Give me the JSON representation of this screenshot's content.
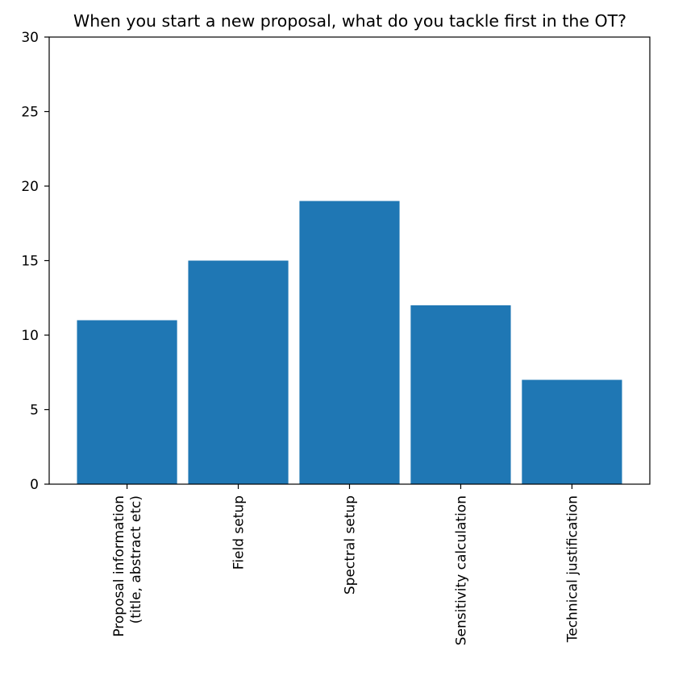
{
  "chart_data": {
    "type": "bar",
    "title": "When you start a new proposal, what do you tackle first in the OT?",
    "xlabel": "",
    "ylabel": "",
    "categories": [
      [
        "Proposal information",
        "(title, abstract etc)"
      ],
      [
        "Field setup"
      ],
      [
        "Spectral setup"
      ],
      [
        "Sensitivity calculation"
      ],
      [
        "Technical justification"
      ]
    ],
    "values": [
      11,
      15,
      19,
      12,
      7
    ],
    "ylim": [
      0,
      30
    ],
    "yticks": [
      "0",
      "5",
      "10",
      "15",
      "20",
      "25",
      "30"
    ],
    "bar_color": "#1f77b4",
    "grid": false,
    "legend": "none"
  }
}
